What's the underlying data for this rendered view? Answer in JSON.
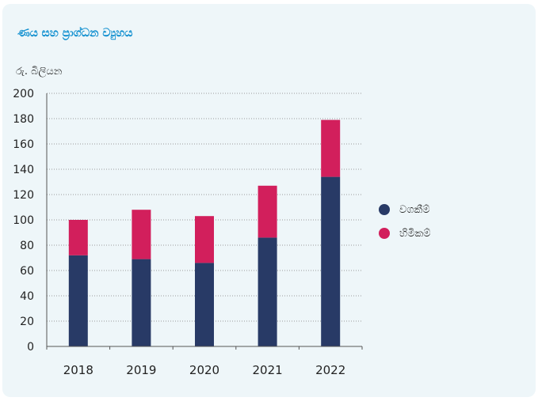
{
  "title": "ණය සහ ප්‍රාග්ධන ව්‍යුහය",
  "colors": {
    "background": "#eef6f9",
    "title": "#1491d0",
    "borrowings": "#283a66",
    "equity": "#d21f5c",
    "grid": "#9a9a9a",
    "axis": "#555555",
    "text": "#222222"
  },
  "chart_data": {
    "type": "bar",
    "stacked": true,
    "title": "ණය සහ ප්‍රාග්ධන ව්‍යුහය",
    "ylabel": "රු. බිලියන",
    "xlabel": "",
    "categories": [
      "2018",
      "2019",
      "2020",
      "2021",
      "2022"
    ],
    "series": [
      {
        "name": "වගකීම්",
        "values": [
          72,
          69,
          66,
          86,
          134
        ],
        "color": "#283a66"
      },
      {
        "name": "හිමිකම්",
        "values": [
          28,
          39,
          37,
          41,
          45
        ],
        "color": "#d21f5c"
      }
    ],
    "ylim": [
      0,
      200
    ],
    "yticks": [
      0,
      20,
      40,
      60,
      80,
      100,
      120,
      140,
      160,
      180,
      200
    ],
    "grid": true,
    "grid_style": "dotted",
    "legend_position": "right"
  }
}
